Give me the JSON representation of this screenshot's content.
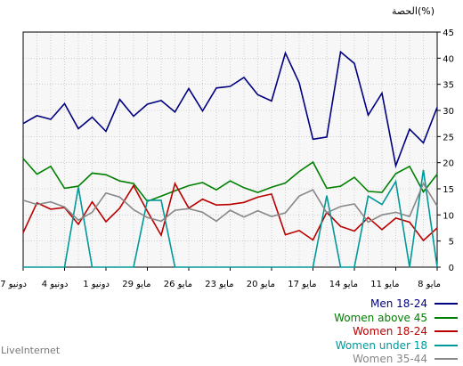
{
  "chart_data": {
    "type": "line",
    "ylabel": "الحصة(%)",
    "ylim": [
      0,
      45
    ],
    "yticks": [
      0,
      5,
      10,
      15,
      20,
      25,
      30,
      35,
      40,
      45
    ],
    "grid": true,
    "legend_position": "bottom-right",
    "xtick_labels": [
      "7 دونيو",
      "4 دونيو",
      "1 دونيو",
      "29 مايو",
      "26 مايو",
      "23 مايو",
      "20 مايو",
      "17 مايو",
      "14 مايو",
      "11 مايو",
      "8 مايو"
    ],
    "series": [
      {
        "name": "Men 18-24",
        "color": "#000080",
        "values": [
          27.5,
          29,
          28.3,
          31.3,
          26.5,
          28.7,
          26,
          32.1,
          28.9,
          31.2,
          31.9,
          29.7,
          34.2,
          29.9,
          34.3,
          34.6,
          36.3,
          33,
          31.8,
          41,
          35.3,
          24.5,
          24.9,
          41.2,
          39,
          29.1,
          33.3,
          19.4,
          26.4,
          23.8,
          30.6
        ]
      },
      {
        "name": "Women above 45",
        "color": "#008000",
        "values": [
          20.8,
          17.8,
          19.3,
          15.1,
          15.5,
          18,
          17.7,
          16.5,
          16,
          12.6,
          13.6,
          14.6,
          15.6,
          16.2,
          14.8,
          16.5,
          15.2,
          14.3,
          15.3,
          16.1,
          18.3,
          20.1,
          15.1,
          15.5,
          17.2,
          14.5,
          14.3,
          17.9,
          19.3,
          14.4,
          17.8
        ]
      },
      {
        "name": "Women 18-24",
        "color": "#bb0000",
        "values": [
          6.6,
          12.3,
          11.1,
          11.4,
          8.2,
          12.5,
          8.7,
          11.3,
          15.6,
          10.7,
          6.1,
          16,
          11.3,
          13,
          11.9,
          12,
          12.4,
          13.4,
          14,
          6.2,
          7,
          5.2,
          10.5,
          7.8,
          6.9,
          9.5,
          7.2,
          9.4,
          8.6,
          5.1,
          7.5
        ]
      },
      {
        "name": "Women under 18",
        "color": "#009999",
        "values": [
          0,
          0,
          0,
          0,
          15.3,
          0,
          0,
          0,
          0,
          12.8,
          12.8,
          0,
          0,
          0,
          0,
          0,
          0,
          0,
          0,
          0,
          0,
          0,
          13.7,
          0,
          0,
          13.6,
          12,
          16.4,
          0,
          18.6,
          0
        ]
      },
      {
        "name": "Women 35-44",
        "color": "#888888",
        "values": [
          12.8,
          12,
          12.5,
          11.5,
          9,
          10.5,
          14.2,
          13.4,
          11,
          9.5,
          8.8,
          10.9,
          11.2,
          10.5,
          8.8,
          10.9,
          9.6,
          10.8,
          9.7,
          10.4,
          13.6,
          14.8,
          10.4,
          11.6,
          12.1,
          8.6,
          10,
          10.5,
          9.7,
          16,
          11.7
        ]
      }
    ]
  },
  "footer": {
    "text": "LiveInternet"
  }
}
